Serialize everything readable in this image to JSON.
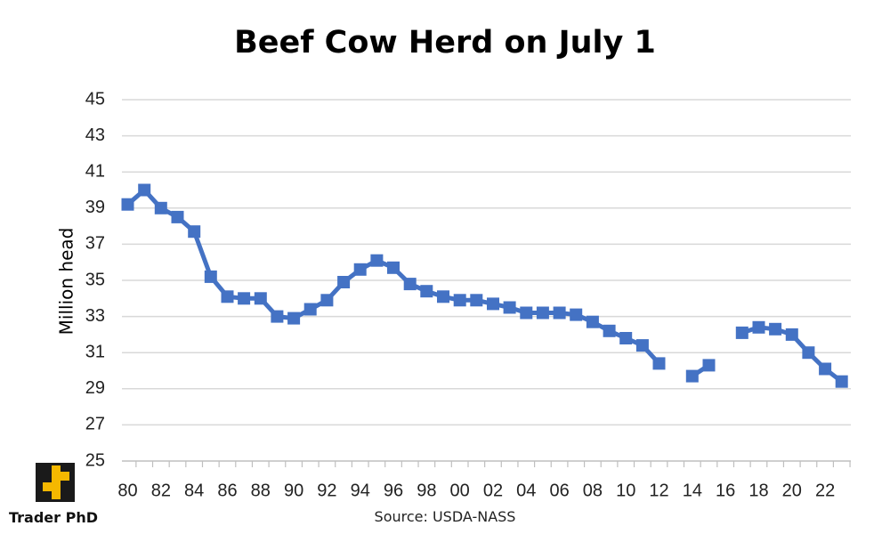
{
  "chart_data": {
    "type": "line",
    "title": "Beef Cow Herd on July 1",
    "xlabel": "",
    "ylabel": "Million head",
    "ylim": [
      25,
      45
    ],
    "yticks": [
      "25",
      "27",
      "29",
      "31",
      "33",
      "35",
      "37",
      "39",
      "41",
      "43",
      "45"
    ],
    "xticks": [
      "80",
      "82",
      "84",
      "86",
      "88",
      "90",
      "92",
      "94",
      "96",
      "98",
      "00",
      "02",
      "04",
      "06",
      "08",
      "10",
      "12",
      "14",
      "16",
      "18",
      "20",
      "22"
    ],
    "grid": "horizontal",
    "legend": "none",
    "series": [
      {
        "color": "#4472C4",
        "marker": "square",
        "points": [
          {
            "x": 1980,
            "y": 39.2
          },
          {
            "x": 1981,
            "y": 40.0
          },
          {
            "x": 1982,
            "y": 39.0
          },
          {
            "x": 1983,
            "y": 38.5
          },
          {
            "x": 1984,
            "y": 37.7
          },
          {
            "x": 1985,
            "y": 35.2
          },
          {
            "x": 1986,
            "y": 34.1
          },
          {
            "x": 1987,
            "y": 34.0
          },
          {
            "x": 1988,
            "y": 34.0
          },
          {
            "x": 1989,
            "y": 33.0
          },
          {
            "x": 1990,
            "y": 32.9
          },
          {
            "x": 1991,
            "y": 33.4
          },
          {
            "x": 1992,
            "y": 33.9
          },
          {
            "x": 1993,
            "y": 34.9
          },
          {
            "x": 1994,
            "y": 35.6
          },
          {
            "x": 1995,
            "y": 36.1
          },
          {
            "x": 1996,
            "y": 35.7
          },
          {
            "x": 1997,
            "y": 34.8
          },
          {
            "x": 1998,
            "y": 34.4
          },
          {
            "x": 1999,
            "y": 34.1
          },
          {
            "x": 2000,
            "y": 33.9
          },
          {
            "x": 2001,
            "y": 33.9
          },
          {
            "x": 2002,
            "y": 33.7
          },
          {
            "x": 2003,
            "y": 33.5
          },
          {
            "x": 2004,
            "y": 33.2
          },
          {
            "x": 2005,
            "y": 33.2
          },
          {
            "x": 2006,
            "y": 33.2
          },
          {
            "x": 2007,
            "y": 33.1
          },
          {
            "x": 2008,
            "y": 32.7
          },
          {
            "x": 2009,
            "y": 32.2
          },
          {
            "x": 2010,
            "y": 31.8
          },
          {
            "x": 2011,
            "y": 31.4
          },
          {
            "x": 2012,
            "y": 30.4
          },
          {
            "x": 2013,
            "y": null
          },
          {
            "x": 2014,
            "y": 29.7
          },
          {
            "x": 2015,
            "y": 30.3
          },
          {
            "x": 2016,
            "y": null
          },
          {
            "x": 2017,
            "y": 32.1
          },
          {
            "x": 2018,
            "y": 32.4
          },
          {
            "x": 2019,
            "y": 32.3
          },
          {
            "x": 2020,
            "y": 32.0
          },
          {
            "x": 2021,
            "y": 31.0
          },
          {
            "x": 2022,
            "y": 30.1
          },
          {
            "x": 2023,
            "y": 29.4
          }
        ]
      }
    ]
  },
  "source": "Source: USDA-NASS",
  "logo": {
    "text": "Trader PhD",
    "mark_color": "#F5B800",
    "mark_bg": "#1A1A1A"
  }
}
